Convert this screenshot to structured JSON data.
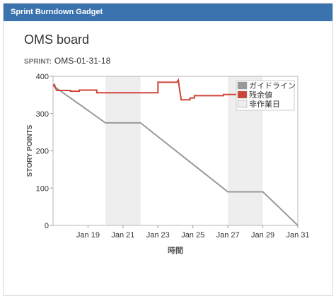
{
  "gadget": {
    "title": "Sprint Burndown Gadget"
  },
  "board": {
    "title": "OMS board",
    "sprint_label": "SPRINT:",
    "sprint_name": "OMS-01-31-18"
  },
  "chart_data": {
    "type": "line",
    "title": "",
    "xlabel": "時間",
    "ylabel": "STORY POINTS",
    "ylim": [
      0,
      400
    ],
    "yticks": [
      0,
      100,
      200,
      300,
      400
    ],
    "xlim": [
      "2018-01-17",
      "2018-01-31"
    ],
    "xticks": [
      "Jan 19",
      "Jan 21",
      "Jan 23",
      "Jan 25",
      "Jan 27",
      "Jan 29",
      "Jan 31"
    ],
    "grid": false,
    "legend_position": "top-right",
    "non_working_periods": [
      [
        "2018-01-20",
        "2018-01-22"
      ],
      [
        "2018-01-27",
        "2018-01-29"
      ]
    ],
    "colors": {
      "guideline": "#999999",
      "remaining": "#d04437",
      "non_working": "#eeeeee"
    },
    "legend": [
      {
        "key": "guideline",
        "label": "ガイドライン"
      },
      {
        "key": "remaining",
        "label": "残余値"
      },
      {
        "key": "non_working",
        "label": "非作業日"
      }
    ],
    "series": [
      {
        "name": "ガイドライン",
        "key": "guideline",
        "points": [
          [
            "2018-01-17",
            375
          ],
          [
            "2018-01-20",
            275
          ],
          [
            "2018-01-22",
            275
          ],
          [
            "2018-01-27",
            90
          ],
          [
            "2018-01-29",
            90
          ],
          [
            "2018-01-31",
            0
          ]
        ]
      },
      {
        "name": "残余値",
        "key": "remaining",
        "points": [
          [
            "2018-01-17 00:00",
            375
          ],
          [
            "2018-01-17 02:00",
            378
          ],
          [
            "2018-01-17 03:00",
            370
          ],
          [
            "2018-01-17 05:00",
            362
          ],
          [
            "2018-01-18 00:00",
            362
          ],
          [
            "2018-01-18 00:01",
            360
          ],
          [
            "2018-01-18 12:00",
            360
          ],
          [
            "2018-01-18 12:01",
            363
          ],
          [
            "2018-01-19 12:00",
            363
          ],
          [
            "2018-01-19 12:01",
            356
          ],
          [
            "2018-01-23 00:00",
            356
          ],
          [
            "2018-01-23 00:01",
            384
          ],
          [
            "2018-01-24 02:00",
            384
          ],
          [
            "2018-01-24 04:00",
            390
          ],
          [
            "2018-01-24 06:00",
            360
          ],
          [
            "2018-01-24 08:00",
            337
          ],
          [
            "2018-01-24 20:00",
            337
          ],
          [
            "2018-01-24 20:01",
            342
          ],
          [
            "2018-01-25 02:00",
            342
          ],
          [
            "2018-01-25 02:01",
            348
          ],
          [
            "2018-01-26 18:00",
            348
          ],
          [
            "2018-01-26 18:01",
            351
          ],
          [
            "2018-01-28 00:00",
            351
          ]
        ]
      }
    ]
  }
}
